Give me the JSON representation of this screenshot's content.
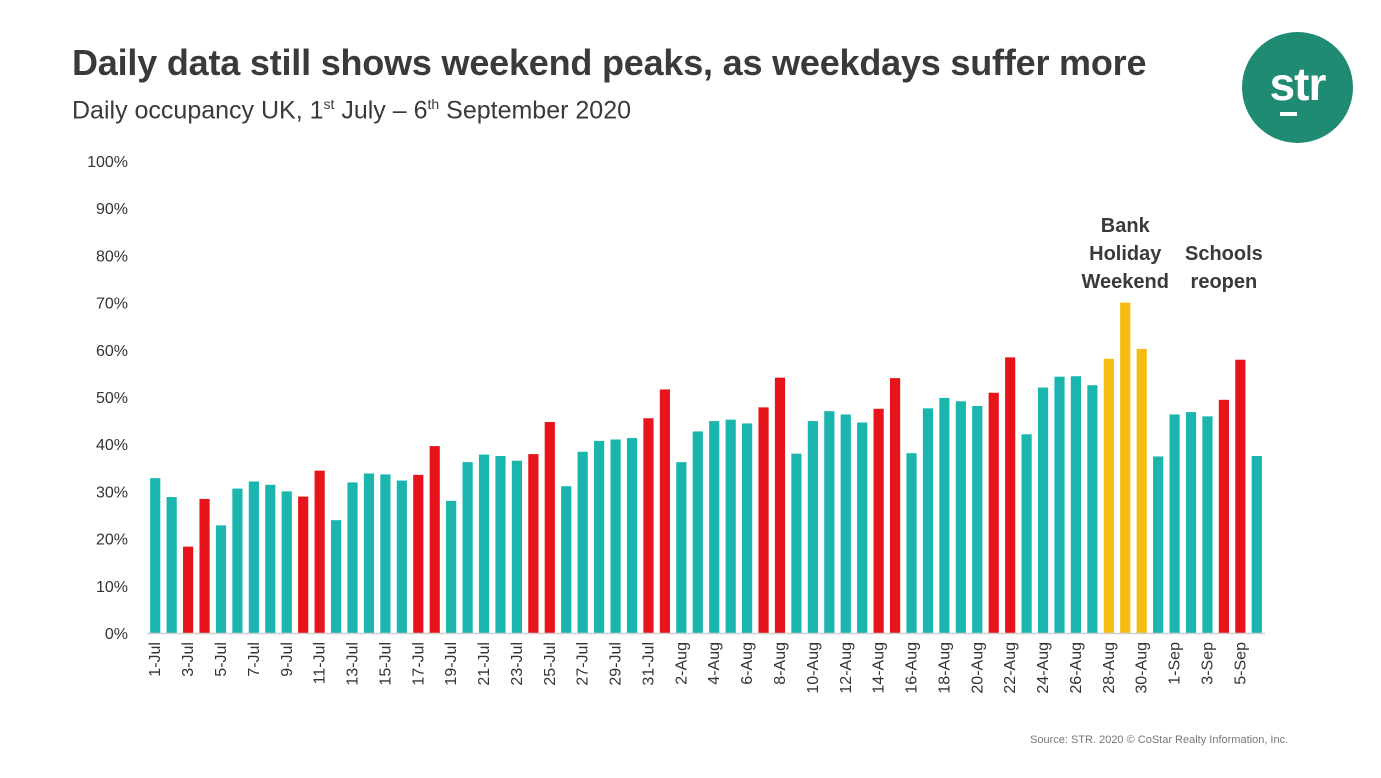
{
  "header": {
    "title": "Daily data still shows weekend peaks, as weekdays suffer more",
    "subtitle_a": "Daily occupancy UK, 1",
    "subtitle_sup1": "st",
    "subtitle_b": " July – 6",
    "subtitle_sup2": "th",
    "subtitle_c": " September 2020"
  },
  "logo": {
    "text": "str"
  },
  "source": "Source: STR. 2020 © CoStar Realty Information, Inc.",
  "colors": {
    "weekday": "#1ab6ae",
    "weekend": "#e8141c",
    "bank_holiday": "#f5bd14",
    "axis": "#d0d0d0",
    "text": "#333333"
  },
  "chart_data": {
    "type": "bar",
    "ylim": [
      0,
      100
    ],
    "yticks": [
      "0%",
      "10%",
      "20%",
      "30%",
      "40%",
      "50%",
      "60%",
      "70%",
      "80%",
      "90%",
      "100%"
    ],
    "grid": false,
    "xlabel": "",
    "ylabel": "",
    "categories": [
      "1-Jul",
      "2-Jul",
      "3-Jul",
      "4-Jul",
      "5-Jul",
      "6-Jul",
      "7-Jul",
      "8-Jul",
      "9-Jul",
      "10-Jul",
      "11-Jul",
      "12-Jul",
      "13-Jul",
      "14-Jul",
      "15-Jul",
      "16-Jul",
      "17-Jul",
      "18-Jul",
      "19-Jul",
      "20-Jul",
      "21-Jul",
      "22-Jul",
      "23-Jul",
      "24-Jul",
      "25-Jul",
      "26-Jul",
      "27-Jul",
      "28-Jul",
      "29-Jul",
      "30-Jul",
      "31-Jul",
      "1-Aug",
      "2-Aug",
      "3-Aug",
      "4-Aug",
      "5-Aug",
      "6-Aug",
      "7-Aug",
      "8-Aug",
      "9-Aug",
      "10-Aug",
      "11-Aug",
      "12-Aug",
      "13-Aug",
      "14-Aug",
      "15-Aug",
      "16-Aug",
      "17-Aug",
      "18-Aug",
      "19-Aug",
      "20-Aug",
      "21-Aug",
      "22-Aug",
      "23-Aug",
      "24-Aug",
      "25-Aug",
      "26-Aug",
      "27-Aug",
      "28-Aug",
      "29-Aug",
      "30-Aug",
      "31-Aug",
      "1-Sep",
      "2-Sep",
      "3-Sep",
      "4-Sep",
      "5-Sep",
      "6-Sep"
    ],
    "shown_tick_labels": [
      "1-Jul",
      "3-Jul",
      "5-Jul",
      "7-Jul",
      "9-Jul",
      "11-Jul",
      "13-Jul",
      "15-Jul",
      "17-Jul",
      "19-Jul",
      "21-Jul",
      "23-Jul",
      "25-Jul",
      "27-Jul",
      "29-Jul",
      "31-Jul",
      "2-Aug",
      "4-Aug",
      "6-Aug",
      "8-Aug",
      "10-Aug",
      "12-Aug",
      "14-Aug",
      "16-Aug",
      "18-Aug",
      "20-Aug",
      "22-Aug",
      "24-Aug",
      "26-Aug",
      "28-Aug",
      "30-Aug",
      "1-Sep",
      "3-Sep",
      "5-Sep"
    ],
    "values": [
      32.8,
      28.8,
      18.3,
      28.4,
      22.8,
      30.6,
      32.1,
      31.4,
      30.0,
      28.9,
      34.4,
      23.9,
      31.9,
      33.8,
      33.6,
      32.3,
      33.5,
      39.6,
      28.0,
      36.2,
      37.8,
      37.5,
      36.5,
      37.9,
      44.7,
      31.1,
      38.4,
      40.7,
      41.0,
      41.3,
      45.5,
      51.6,
      36.2,
      42.7,
      44.9,
      45.2,
      44.4,
      47.8,
      54.1,
      38.0,
      44.9,
      47.0,
      46.3,
      44.6,
      47.5,
      54.0,
      38.1,
      47.6,
      49.8,
      49.1,
      48.1,
      50.9,
      58.4,
      42.1,
      52.0,
      54.3,
      54.4,
      52.5,
      58.1,
      70.0,
      60.2,
      37.4,
      46.3,
      46.8,
      45.9,
      49.4,
      57.9,
      37.5
    ],
    "bar_types": [
      "w",
      "w",
      "e",
      "e",
      "w",
      "w",
      "w",
      "w",
      "w",
      "e",
      "e",
      "w",
      "w",
      "w",
      "w",
      "w",
      "e",
      "e",
      "w",
      "w",
      "w",
      "w",
      "w",
      "e",
      "e",
      "w",
      "w",
      "w",
      "w",
      "w",
      "e",
      "e",
      "w",
      "w",
      "w",
      "w",
      "w",
      "e",
      "e",
      "w",
      "w",
      "w",
      "w",
      "w",
      "e",
      "e",
      "w",
      "w",
      "w",
      "w",
      "w",
      "e",
      "e",
      "w",
      "w",
      "w",
      "w",
      "w",
      "b",
      "b",
      "b",
      "w",
      "w",
      "w",
      "w",
      "e",
      "e",
      "w"
    ],
    "annotations": [
      {
        "lines": [
          "Bank",
          "Holiday",
          "Weekend"
        ],
        "anchor_category": "29-Aug"
      },
      {
        "lines": [
          "Schools",
          "reopen"
        ],
        "anchor_category": "4-Sep"
      }
    ]
  }
}
